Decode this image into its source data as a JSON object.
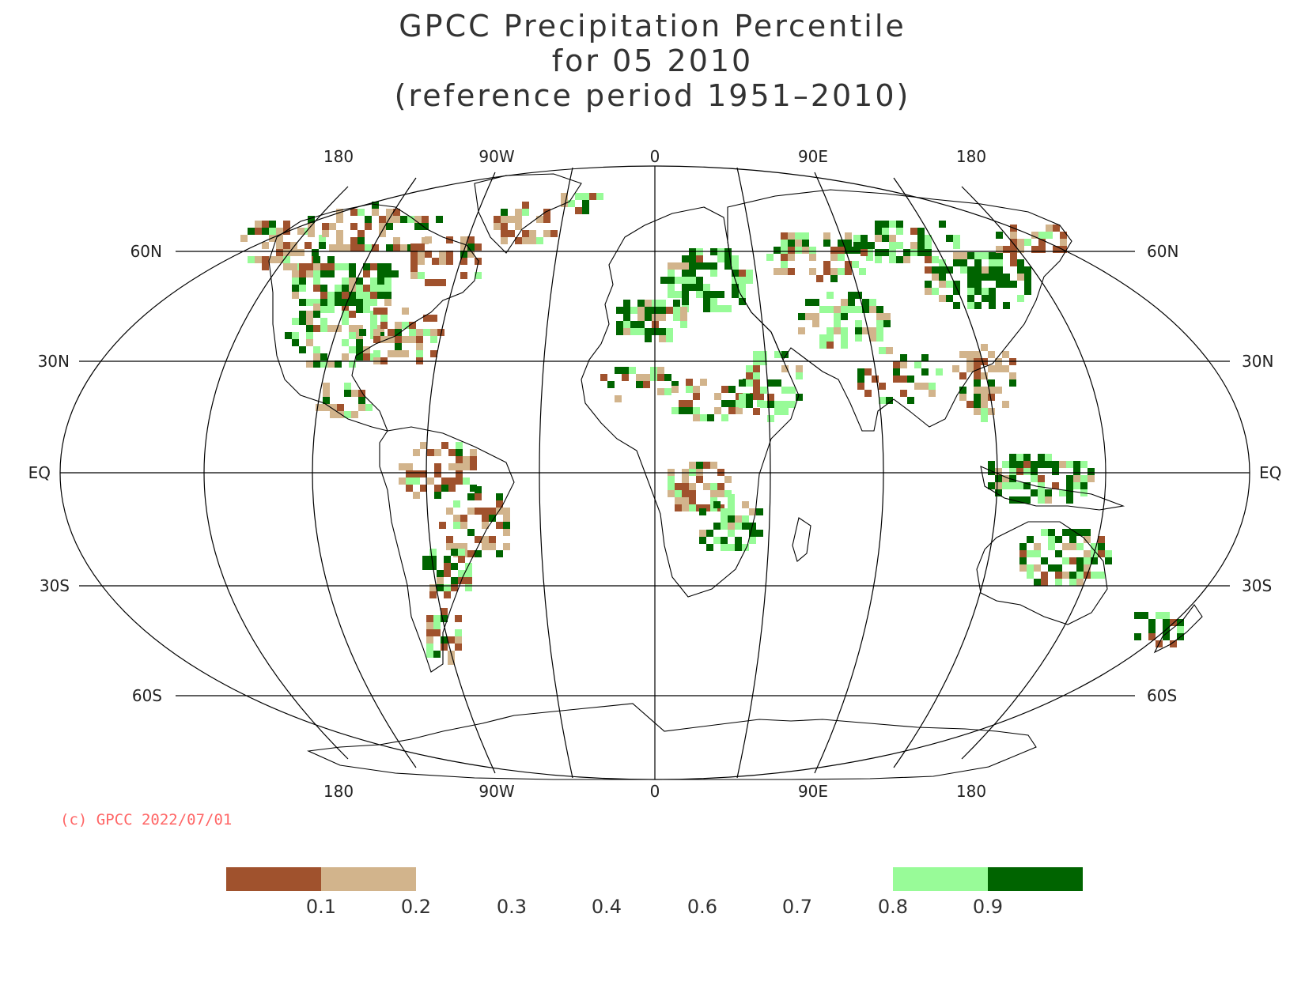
{
  "title": {
    "line1": "GPCC Precipitation Percentile",
    "line2": "for 05 2010",
    "line3": "(reference period 1951–2010)"
  },
  "axes": {
    "lon_labels": [
      "180",
      "90W",
      "0",
      "90E",
      "180"
    ],
    "lat_labels_left": [
      "60N",
      "30N",
      "EQ",
      "30S",
      "60S"
    ],
    "lat_labels_right": [
      "60N",
      "30N",
      "EQ",
      "30S",
      "60S"
    ]
  },
  "copyright": "(c) GPCC 2022/07/01",
  "legend": {
    "labels": [
      "0.1",
      "0.2",
      "0.3",
      "0.4",
      "0.6",
      "0.7",
      "0.8",
      "0.9"
    ],
    "colors": [
      "#a0522d",
      "#d2b48c",
      "#ffffff",
      "#ffffff",
      "#ffffff",
      "#ffffff",
      "#98fb98",
      "#006400"
    ]
  },
  "colors": {
    "very_dry": "#a0522d",
    "dry": "#d2b48c",
    "wet": "#98fb98",
    "very_wet": "#006400"
  }
}
